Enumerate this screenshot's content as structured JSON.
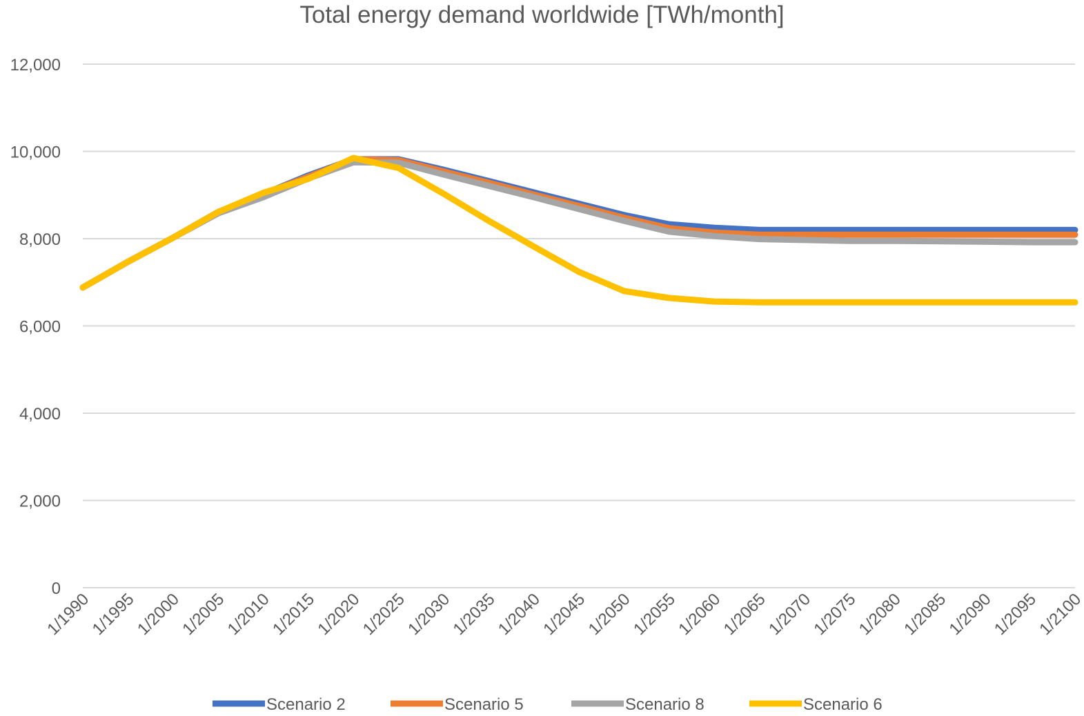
{
  "chart_data": {
    "type": "line",
    "title": "Total energy demand worldwide [TWh/month]",
    "xlabel": "",
    "ylabel": "",
    "categories": [
      "1/1990",
      "1/1995",
      "1/2000",
      "1/2005",
      "1/2010",
      "1/2015",
      "1/2020",
      "1/2025",
      "1/2030",
      "1/2035",
      "1/2040",
      "1/2045",
      "1/2050",
      "1/2055",
      "1/2060",
      "1/2065",
      "1/2070",
      "1/2075",
      "1/2080",
      "1/2085",
      "1/2090",
      "1/2095",
      "1/2100"
    ],
    "ylim": [
      0,
      12000
    ],
    "yticks": [
      0,
      2000,
      4000,
      6000,
      8000,
      10000,
      12000
    ],
    "ytick_labels": [
      "0",
      "2,000",
      "4,000",
      "6,000",
      "8,000",
      "10,000",
      "12,000"
    ],
    "grid": true,
    "legend_position": "bottom",
    "series": [
      {
        "name": "Scenario 2",
        "color": "#4472C4",
        "values": [
          6880,
          7470,
          8020,
          8610,
          9020,
          9450,
          9820,
          9820,
          9580,
          9320,
          9060,
          8800,
          8540,
          8330,
          8250,
          8200,
          8200,
          8200,
          8200,
          8200,
          8200,
          8200,
          8200
        ]
      },
      {
        "name": "Scenario 5",
        "color": "#ED7D31",
        "values": [
          6880,
          7470,
          8020,
          8610,
          9020,
          9420,
          9820,
          9800,
          9540,
          9280,
          9010,
          8750,
          8480,
          8240,
          8140,
          8090,
          8090,
          8090,
          8090,
          8090,
          8090,
          8090,
          8090
        ]
      },
      {
        "name": "Scenario 8",
        "color": "#A5A5A5",
        "values": [
          6880,
          7470,
          8020,
          8580,
          8950,
          9380,
          9750,
          9740,
          9470,
          9210,
          8950,
          8680,
          8410,
          8160,
          8060,
          7990,
          7970,
          7950,
          7950,
          7940,
          7930,
          7920,
          7920
        ]
      },
      {
        "name": "Scenario 6",
        "color": "#FFC000",
        "values": [
          6880,
          7470,
          8020,
          8610,
          9050,
          9370,
          9850,
          9620,
          9030,
          8410,
          7820,
          7240,
          6800,
          6640,
          6560,
          6540,
          6540,
          6540,
          6540,
          6540,
          6540,
          6540,
          6540
        ]
      }
    ]
  }
}
